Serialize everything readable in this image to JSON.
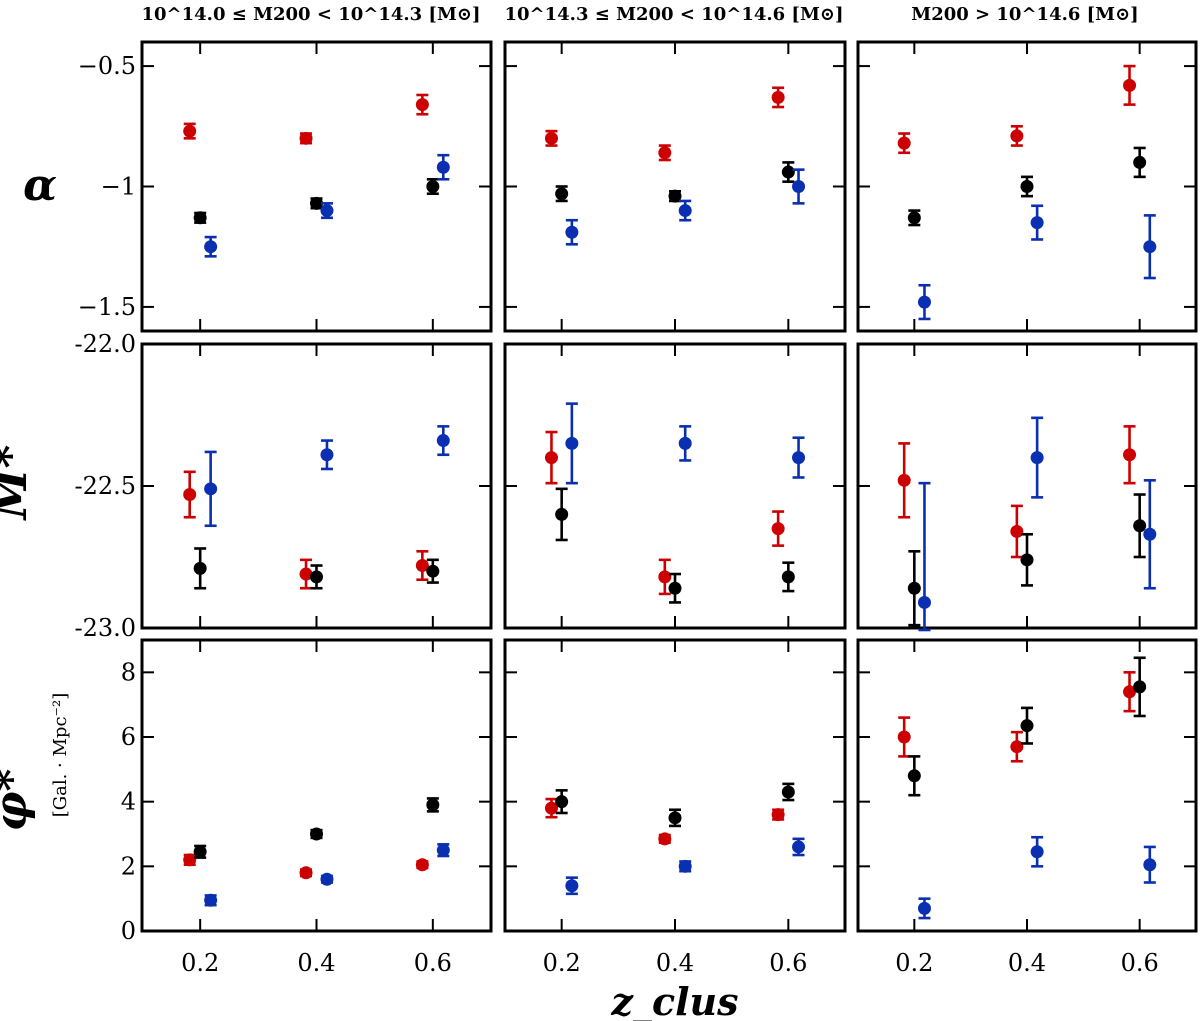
{
  "chart_data": {
    "type": "scatter",
    "xlabel": "z_clus",
    "x_ticks": [
      0.2,
      0.4,
      0.6
    ],
    "x_tick_labels": [
      "0.2",
      "0.4",
      "0.6"
    ],
    "xlim": [
      0.1,
      0.7
    ],
    "column_titles": [
      "10^14.0 ≤ M200 < 10^14.3 [M⊙]",
      "10^14.3 ≤ M200 < 10^14.6 [M⊙]",
      "M200 > 10^14.6 [M⊙]"
    ],
    "rows": [
      {
        "ylabel": "α",
        "ylabel_unit": "",
        "ylim": [
          -1.6,
          -0.4
        ],
        "y_ticks": [
          -1.5,
          -1,
          -0.5
        ],
        "y_tick_labels": [
          "−1.5",
          "−1",
          "−0.5"
        ]
      },
      {
        "ylabel": "M*",
        "ylabel_unit": "",
        "ylim": [
          -23.0,
          -22.0
        ],
        "y_ticks": [
          -23.0,
          -22.5,
          -22.0
        ],
        "y_tick_labels": [
          "-23.0",
          "-22.5",
          "-22.0"
        ]
      },
      {
        "ylabel": "φ*",
        "ylabel_unit": "[Gal. · Mpc⁻²]",
        "ylim": [
          0,
          9
        ],
        "y_ticks": [
          0,
          2,
          4,
          6,
          8
        ],
        "y_tick_labels": [
          "0",
          "2",
          "4",
          "6",
          "8"
        ]
      }
    ],
    "series_colors": {
      "red": "#cc0000",
      "black": "#000000",
      "blue": "#0a2fb0"
    },
    "x_offsets": {
      "red": -0.018,
      "black": 0.0,
      "blue": 0.018
    },
    "panels": [
      {
        "row": 0,
        "col": 0,
        "series": [
          {
            "name": "red",
            "x": [
              0.2,
              0.4,
              0.6
            ],
            "y": [
              -0.77,
              -0.8,
              -0.66
            ],
            "err": [
              0.03,
              0.02,
              0.04
            ]
          },
          {
            "name": "black",
            "x": [
              0.2,
              0.4,
              0.6
            ],
            "y": [
              -1.13,
              -1.07,
              -1.0
            ],
            "err": [
              0.02,
              0.02,
              0.03
            ]
          },
          {
            "name": "blue",
            "x": [
              0.2,
              0.4,
              0.6
            ],
            "y": [
              -1.25,
              -1.1,
              -0.92
            ],
            "err": [
              0.04,
              0.03,
              0.05
            ]
          }
        ]
      },
      {
        "row": 0,
        "col": 1,
        "series": [
          {
            "name": "red",
            "x": [
              0.2,
              0.4,
              0.6
            ],
            "y": [
              -0.8,
              -0.86,
              -0.63
            ],
            "err": [
              0.03,
              0.03,
              0.04
            ]
          },
          {
            "name": "black",
            "x": [
              0.2,
              0.4,
              0.6
            ],
            "y": [
              -1.03,
              -1.04,
              -0.94
            ],
            "err": [
              0.03,
              0.02,
              0.04
            ]
          },
          {
            "name": "blue",
            "x": [
              0.2,
              0.4,
              0.6
            ],
            "y": [
              -1.19,
              -1.1,
              -1.0
            ],
            "err": [
              0.05,
              0.04,
              0.07
            ]
          }
        ]
      },
      {
        "row": 0,
        "col": 2,
        "series": [
          {
            "name": "red",
            "x": [
              0.2,
              0.4,
              0.6
            ],
            "y": [
              -0.82,
              -0.79,
              -0.58
            ],
            "err": [
              0.04,
              0.04,
              0.08
            ]
          },
          {
            "name": "black",
            "x": [
              0.2,
              0.4,
              0.6
            ],
            "y": [
              -1.13,
              -1.0,
              -0.9
            ],
            "err": [
              0.03,
              0.04,
              0.06
            ]
          },
          {
            "name": "blue",
            "x": [
              0.2,
              0.4,
              0.6
            ],
            "y": [
              -1.48,
              -1.15,
              -1.25
            ],
            "err": [
              0.07,
              0.07,
              0.13
            ]
          }
        ]
      },
      {
        "row": 1,
        "col": 0,
        "series": [
          {
            "name": "red",
            "x": [
              0.2,
              0.4,
              0.6
            ],
            "y": [
              -22.53,
              -22.81,
              -22.78
            ],
            "err": [
              0.08,
              0.05,
              0.05
            ]
          },
          {
            "name": "black",
            "x": [
              0.2,
              0.4,
              0.6
            ],
            "y": [
              -22.79,
              -22.82,
              -22.8
            ],
            "err": [
              0.07,
              0.04,
              0.04
            ]
          },
          {
            "name": "blue",
            "x": [
              0.2,
              0.4,
              0.6
            ],
            "y": [
              -22.51,
              -22.39,
              -22.34
            ],
            "err": [
              0.13,
              0.05,
              0.05
            ]
          }
        ]
      },
      {
        "row": 1,
        "col": 1,
        "series": [
          {
            "name": "red",
            "x": [
              0.2,
              0.4,
              0.6
            ],
            "y": [
              -22.4,
              -22.82,
              -22.65
            ],
            "err": [
              0.09,
              0.06,
              0.06
            ]
          },
          {
            "name": "black",
            "x": [
              0.2,
              0.4,
              0.6
            ],
            "y": [
              -22.6,
              -22.86,
              -22.82
            ],
            "err": [
              0.09,
              0.05,
              0.05
            ]
          },
          {
            "name": "blue",
            "x": [
              0.2,
              0.4,
              0.6
            ],
            "y": [
              -22.35,
              -22.35,
              -22.4
            ],
            "err": [
              0.14,
              0.06,
              0.07
            ]
          }
        ]
      },
      {
        "row": 1,
        "col": 2,
        "series": [
          {
            "name": "red",
            "x": [
              0.2,
              0.4,
              0.6
            ],
            "y": [
              -22.48,
              -22.66,
              -22.39
            ],
            "err": [
              0.13,
              0.09,
              0.1
            ]
          },
          {
            "name": "black",
            "x": [
              0.2,
              0.4,
              0.6
            ],
            "y": [
              -22.86,
              -22.76,
              -22.64
            ],
            "err": [
              0.13,
              0.09,
              0.11
            ]
          },
          {
            "name": "blue",
            "x": [
              0.2,
              0.4,
              0.6
            ],
            "y": [
              -22.91,
              -22.4,
              -22.67
            ],
            "err": [
              0.42,
              0.14,
              0.19
            ]
          }
        ]
      },
      {
        "row": 2,
        "col": 0,
        "series": [
          {
            "name": "red",
            "x": [
              0.2,
              0.4,
              0.6
            ],
            "y": [
              2.2,
              1.8,
              2.05
            ],
            "err": [
              0.15,
              0.1,
              0.1
            ]
          },
          {
            "name": "black",
            "x": [
              0.2,
              0.4,
              0.6
            ],
            "y": [
              2.45,
              3.0,
              3.9
            ],
            "err": [
              0.18,
              0.12,
              0.2
            ]
          },
          {
            "name": "blue",
            "x": [
              0.2,
              0.4,
              0.6
            ],
            "y": [
              0.95,
              1.6,
              2.5
            ],
            "err": [
              0.15,
              0.1,
              0.18
            ]
          }
        ]
      },
      {
        "row": 2,
        "col": 1,
        "series": [
          {
            "name": "red",
            "x": [
              0.2,
              0.4,
              0.6
            ],
            "y": [
              3.8,
              2.85,
              3.6
            ],
            "err": [
              0.28,
              0.12,
              0.15
            ]
          },
          {
            "name": "black",
            "x": [
              0.2,
              0.4,
              0.6
            ],
            "y": [
              4.0,
              3.5,
              4.3
            ],
            "err": [
              0.35,
              0.25,
              0.25
            ]
          },
          {
            "name": "blue",
            "x": [
              0.2,
              0.4,
              0.6
            ],
            "y": [
              1.4,
              2.0,
              2.6
            ],
            "err": [
              0.25,
              0.15,
              0.25
            ]
          }
        ]
      },
      {
        "row": 2,
        "col": 2,
        "series": [
          {
            "name": "red",
            "x": [
              0.2,
              0.4,
              0.6
            ],
            "y": [
              6.0,
              5.7,
              7.4
            ],
            "err": [
              0.6,
              0.45,
              0.6
            ]
          },
          {
            "name": "black",
            "x": [
              0.2,
              0.4,
              0.6
            ],
            "y": [
              4.8,
              6.35,
              7.55
            ],
            "err": [
              0.6,
              0.55,
              0.9
            ]
          },
          {
            "name": "blue",
            "x": [
              0.2,
              0.4,
              0.6
            ],
            "y": [
              0.7,
              2.45,
              2.05
            ],
            "err": [
              0.3,
              0.45,
              0.55
            ]
          }
        ]
      }
    ]
  }
}
